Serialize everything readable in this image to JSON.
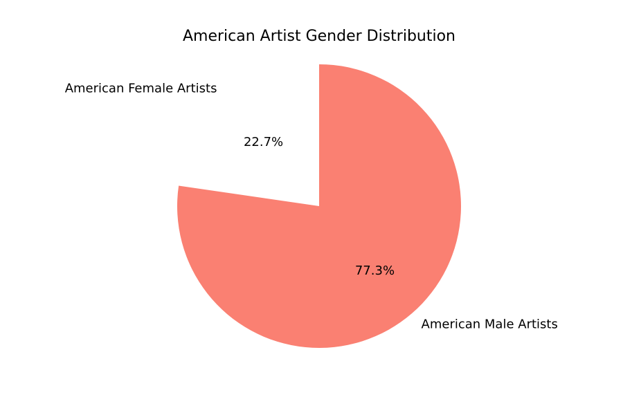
{
  "chart_data": {
    "type": "pie",
    "title": "American Artist Gender Distribution",
    "slices": [
      {
        "label": "American Female Artists",
        "value": 22.7,
        "pct_label": "22.7%",
        "color": "#ffffff"
      },
      {
        "label": "American Male Artists",
        "value": 77.3,
        "pct_label": "77.3%",
        "color": "#fa8072"
      }
    ]
  }
}
